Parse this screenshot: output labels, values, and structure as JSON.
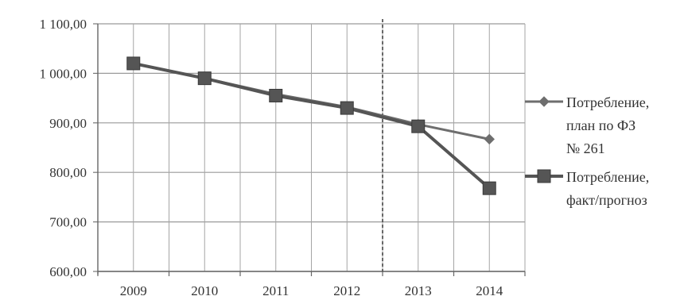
{
  "chart_data": {
    "type": "line",
    "categories": [
      "2009",
      "2010",
      "2011",
      "2012",
      "2013",
      "2014"
    ],
    "ylim": [
      600,
      1100
    ],
    "y_ticks": [
      600,
      700,
      800,
      900,
      1000,
      1100
    ],
    "y_tick_labels": [
      "600,00",
      "700,00",
      "800,00",
      "900,00",
      "1 000,00",
      "1 100,00"
    ],
    "grid": true,
    "divider_after_category": "2012",
    "legend_position": "right",
    "series": [
      {
        "name": "Потребление, план по ФЗ № 261",
        "name_lines": [
          "Потребление,",
          "план по ФЗ",
          "№ 261"
        ],
        "marker": "diamond",
        "color": "#6e6e6e",
        "values": [
          1020,
          990,
          958,
          932,
          897,
          867
        ]
      },
      {
        "name": "Потребление, факт/прогноз",
        "name_lines": [
          "Потребление,",
          "факт/прогноз"
        ],
        "marker": "square",
        "color": "#555555",
        "values": [
          1020,
          990,
          955,
          930,
          893,
          768
        ]
      }
    ]
  }
}
